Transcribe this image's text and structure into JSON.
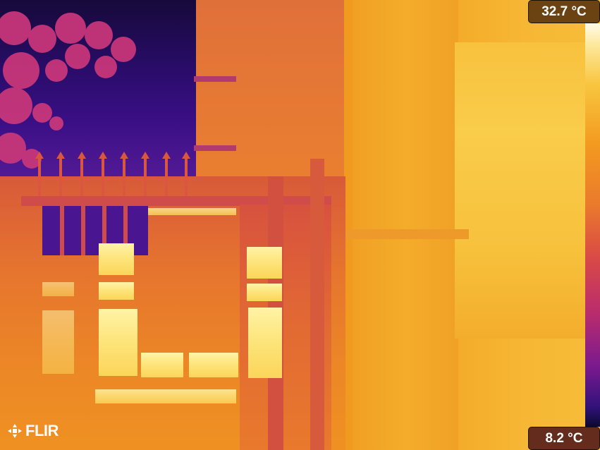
{
  "thermal": {
    "max_temp": "32.7 °C",
    "min_temp": "8.2 °C"
  },
  "brand": {
    "logo_text": "FLIR"
  },
  "colors": {
    "palette": "iron",
    "hot": "#fffbea",
    "mid": "#f39a20",
    "cold": "#0a0a30"
  }
}
